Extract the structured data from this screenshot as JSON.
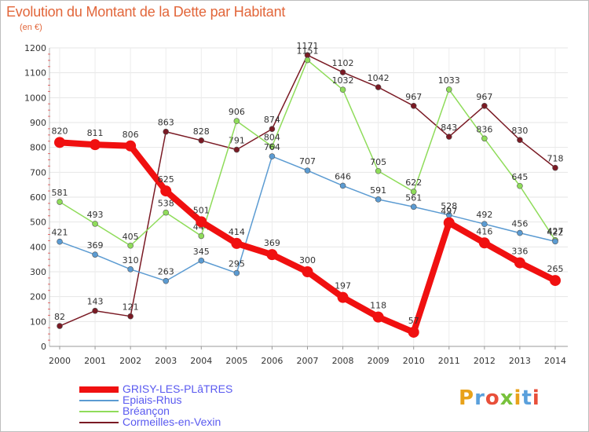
{
  "title": "Evolution du Montant de la Dette par Habitant",
  "subtitle": "(en €)",
  "logo_text": "Proxiti",
  "chart_data": {
    "type": "line",
    "title": "Evolution du Montant de la Dette par Habitant",
    "subtitle": "(en €)",
    "xlabel": "",
    "ylabel": "",
    "ylim": [
      0,
      1200
    ],
    "yticks": [
      0,
      100,
      200,
      300,
      400,
      500,
      600,
      700,
      800,
      900,
      1000,
      1100,
      1200
    ],
    "grid": true,
    "legend": "bottom-left",
    "x": [
      "2000",
      "2001",
      "2002",
      "2003",
      "2004",
      "2005",
      "2006",
      "2007",
      "2008",
      "2009",
      "2010",
      "2011",
      "2012",
      "2013",
      "2014"
    ],
    "series": [
      {
        "name": "Cormeilles-en-Vexin",
        "color": "#7a1a24",
        "values": [
          82,
          143,
          121,
          863,
          828,
          791,
          874,
          1171,
          1102,
          1042,
          967,
          843,
          967,
          830,
          718
        ],
        "labels": [
          "82",
          "143",
          "121",
          "863",
          "828",
          "791",
          "874",
          "1171",
          "1102",
          "1042",
          "967",
          "843",
          "967",
          "830",
          "718"
        ]
      },
      {
        "name": "Bréançon",
        "color": "#8fdc5a",
        "values": [
          581,
          493,
          405,
          538,
          444,
          906,
          804,
          1151,
          1032,
          705,
          622,
          1033,
          836,
          645,
          427
        ],
        "labels": [
          "581",
          "493",
          "405",
          "538",
          "444",
          "906",
          "804",
          "1151",
          "1032",
          "705",
          "622",
          "1033",
          "836",
          "645",
          "427"
        ]
      },
      {
        "name": "Epiais-Rhus",
        "color": "#5b9bd2",
        "values": [
          421,
          369,
          310,
          263,
          345,
          295,
          764,
          707,
          646,
          591,
          561,
          528,
          492,
          456,
          422
        ],
        "labels": [
          "421",
          "369",
          "310",
          "263",
          "345",
          "295",
          "764",
          "707",
          "646",
          "591",
          "561",
          "528",
          "492",
          "456",
          "422"
        ]
      },
      {
        "name": "GRISY-LES-PLÂTRES",
        "color": "#f01010",
        "values": [
          820,
          811,
          806,
          625,
          501,
          414,
          369,
          300,
          197,
          118,
          57,
          497,
          416,
          336,
          265
        ],
        "labels": [
          "820",
          "811",
          "806",
          "625",
          "501",
          "414",
          "369",
          "300",
          "197",
          "118",
          "57",
          "497",
          "416",
          "336",
          "265"
        ]
      }
    ]
  },
  "legend": [
    {
      "label": "GRISY-LES-PLâTRES",
      "color": "#f01010",
      "width": 8
    },
    {
      "label": "Epiais-Rhus",
      "color": "#5b9bd2",
      "width": 2
    },
    {
      "label": "Bréançon",
      "color": "#8fdc5a",
      "width": 2
    },
    {
      "label": "Cormeilles-en-Vexin",
      "color": "#7a1a24",
      "width": 2
    }
  ]
}
